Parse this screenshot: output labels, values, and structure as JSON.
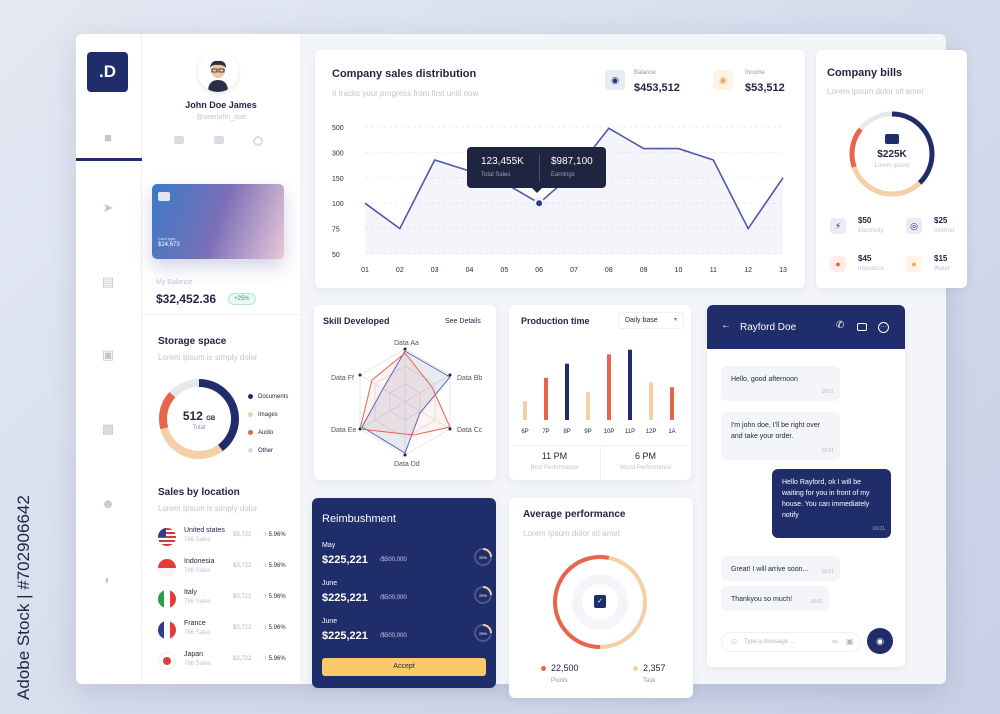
{
  "sidebar": {
    "logo": ".D",
    "icons": [
      "home-icon",
      "bolt-icon",
      "card-icon",
      "apps-icon",
      "inbox-icon",
      "contact-icon",
      "contrast-icon"
    ]
  },
  "profile": {
    "name": "John Doe James",
    "handle": "@userjohn_doe",
    "card_label": "Card type",
    "card_amount": "$24,673",
    "balance_label": "My Balance",
    "balance_value": "$32,452.36",
    "balance_change": "+25%"
  },
  "storage": {
    "title": "Storage space",
    "subtitle": "Lorem Ipsum is simply dolor",
    "total_value": "512",
    "total_unit": "GB",
    "total_label": "Total",
    "legend": [
      {
        "label": "Documents",
        "color": "#1f2d6b"
      },
      {
        "label": "Images",
        "color": "#f5cfa6"
      },
      {
        "label": "Audio",
        "color": "#e8644a"
      },
      {
        "label": "Other",
        "color": "#d9dce4"
      }
    ]
  },
  "sales_location": {
    "title": "Sales by location",
    "subtitle": "Lorem Ipsum is simply dolor",
    "rows": [
      {
        "country": "United states",
        "sales": "766 Sales",
        "amount": "$3,722",
        "pct": "5.96%",
        "dir": "up"
      },
      {
        "country": "Indonesia",
        "sales": "766 Sales",
        "amount": "$3,722",
        "pct": "5.96%",
        "dir": "down"
      },
      {
        "country": "Italy",
        "sales": "756 Sales",
        "amount": "$3,722",
        "pct": "5.96%",
        "dir": "up"
      },
      {
        "country": "France",
        "sales": "766 Sales",
        "amount": "$3,722",
        "pct": "5.96%",
        "dir": "down"
      },
      {
        "country": "Japan",
        "sales": "766 Sales",
        "amount": "$3,722",
        "pct": "5.96%",
        "dir": "up"
      }
    ]
  },
  "sales_dist": {
    "title": "Company sales distribution",
    "subtitle": "It tracks your progress from first until now",
    "balance_label": "Balance",
    "balance_value": "$453,512",
    "income_label": "Income",
    "income_value": "$53,512",
    "tooltip": {
      "sales_value": "123,455K",
      "sales_label": "Total Sales",
      "earn_value": "$987,100",
      "earn_label": "Earnings"
    }
  },
  "chart_data": [
    {
      "type": "line",
      "x": [
        "01",
        "02",
        "03",
        "04",
        "05",
        "06",
        "07",
        "08",
        "09",
        "10",
        "11",
        "12",
        "13"
      ],
      "y_ticks": [
        500,
        300,
        150,
        100,
        75,
        50
      ],
      "values": [
        100,
        75,
        255,
        190,
        140,
        100,
        180,
        490,
        330,
        330,
        255,
        75,
        150
      ],
      "highlight_index": 5
    },
    {
      "type": "bar",
      "categories": [
        "6P",
        "7P",
        "8P",
        "9P",
        "10P",
        "11P",
        "12P",
        "1A"
      ],
      "series": [
        {
          "values": [
            20,
            45,
            60,
            30,
            70,
            75,
            40,
            35
          ]
        }
      ],
      "colors": [
        "#f5cfa6",
        "#e8644a",
        "#1f2d6b",
        "#f5cfa6",
        "#e8644a",
        "#1f2d6b",
        "#f5cfa6",
        "#e8644a"
      ]
    }
  ],
  "skill": {
    "title": "Skill Developed",
    "details_link": "See Details",
    "labels": [
      "Data Aa",
      "Data Bb",
      "Data Cc",
      "Data Dd",
      "Data Ee",
      "Data Ff"
    ]
  },
  "production": {
    "title": "Production time",
    "dropdown": "Daily base",
    "best_value": "11 PM",
    "best_label": "Best Performance",
    "worst_value": "6 PM",
    "worst_label": "Worst Performance"
  },
  "bills": {
    "title": "Company bills",
    "subtitle": "Lorem ipsum dolor sit amet",
    "center_value": "$225K",
    "center_label": "Lorem ipsum",
    "items": [
      {
        "value": "$50",
        "label": "Electricity",
        "icon": "bolt-icon",
        "bg": "#e9ecf6",
        "fg": "#1f2d6b"
      },
      {
        "value": "$25",
        "label": "Internet",
        "icon": "wifi-icon",
        "bg": "#e9ecf6",
        "fg": "#1f2d6b"
      },
      {
        "value": "$45",
        "label": "Insurance",
        "icon": "pin-icon",
        "bg": "#fdecea",
        "fg": "#e8644a"
      },
      {
        "value": "$15",
        "label": "Water",
        "icon": "drop-icon",
        "bg": "#fff3e6",
        "fg": "#f0a860"
      }
    ]
  },
  "chat": {
    "contact": "Rayford Doe",
    "messages": [
      {
        "text": "Hello, good afternoon",
        "time": "16:01"
      },
      {
        "text": "I'm john doe, I'll be right over and take your order.",
        "time": "16:01"
      },
      {
        "text": "Hello Rayford, ok I will be waiting for you in front of my house. You can immediately notify",
        "time": "16:01"
      },
      {
        "text": "Great! I will arrive soon...",
        "time": "16:01"
      },
      {
        "text": "Thankyou so much!",
        "time": "16:01"
      }
    ],
    "input_placeholder": "Type a message ..."
  },
  "reimbursement": {
    "title": "Reimbushment",
    "rows": [
      {
        "month": "May",
        "value": "$225,221",
        "of": "/$500,000",
        "pct": "25%"
      },
      {
        "month": "June",
        "value": "$225,221",
        "of": "/$500,000",
        "pct": "25%"
      },
      {
        "month": "June",
        "value": "$225,221",
        "of": "/$500,000",
        "pct": "25%"
      }
    ],
    "accept_label": "Accept"
  },
  "avg_perf": {
    "title": "Average performance",
    "subtitle": "Lorem Ipsum dolor sit amet",
    "points_value": "22,500",
    "points_label": "Points",
    "task_value": "2,357",
    "task_label": "Task"
  },
  "watermark": {
    "text": "Adobe Stock | #702906642"
  }
}
